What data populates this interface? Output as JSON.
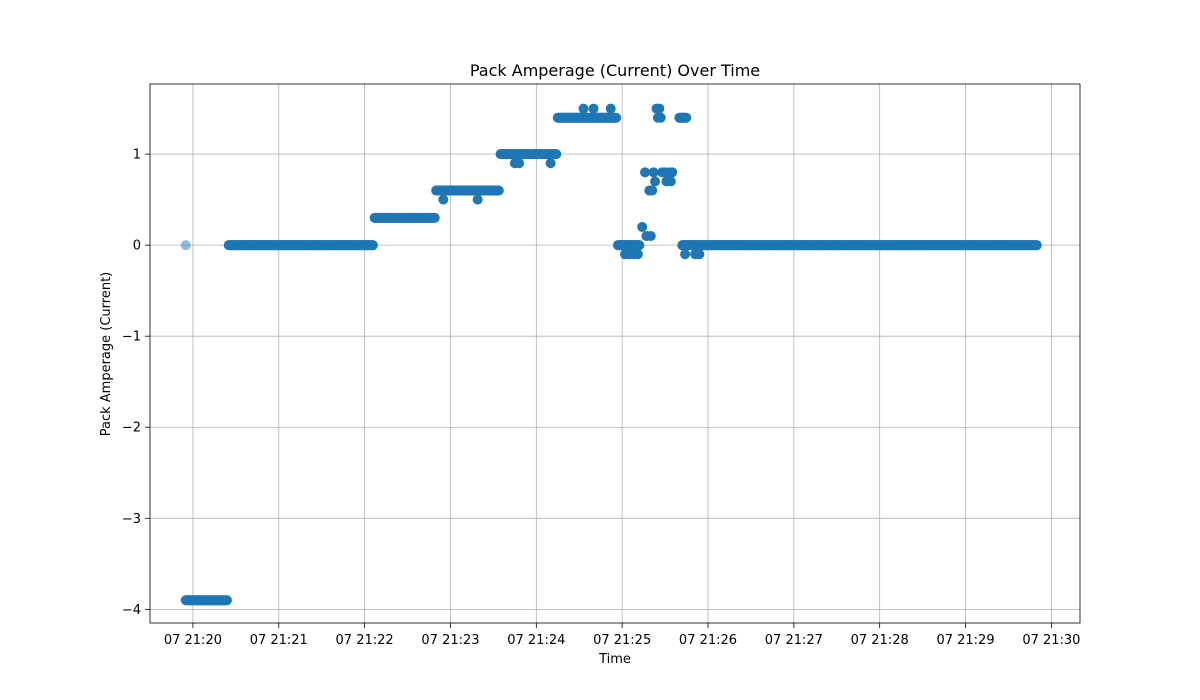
{
  "chart_data": {
    "type": "scatter",
    "title": "Pack Amperage (Current) Over Time",
    "xlabel": "Time",
    "ylabel": "Pack Amperage (Current)",
    "x_unit": "minute",
    "x_ticks": [
      "21:20",
      "21:21",
      "21:22",
      "21:23",
      "21:24",
      "21:25",
      "21:26",
      "21:27",
      "21:28",
      "21:29",
      "21:30"
    ],
    "x_tick_labels": [
      "07 21:20",
      "07 21:21",
      "07 21:22",
      "07 21:23",
      "07 21:24",
      "07 21:25",
      "07 21:26",
      "07 21:27",
      "07 21:28",
      "07 21:29",
      "07 21:30"
    ],
    "y_ticks": [
      -4,
      -3,
      -2,
      -1,
      0,
      1
    ],
    "y_tick_labels": [
      "−4",
      "−3",
      "−2",
      "−1",
      "0",
      "1"
    ],
    "xlim": [
      "21:19:30",
      "21:30:20"
    ],
    "ylim": [
      -4.15,
      1.77
    ],
    "grid": true,
    "color": "#1f77b4",
    "outlier_points": [
      {
        "x": "21:19:55",
        "y": 0
      }
    ],
    "segments": [
      {
        "x_start": "21:19:55",
        "x_end": "21:20:24",
        "y": -3.9
      },
      {
        "x_start": "21:20:25",
        "x_end": "21:22:06",
        "y": 0
      },
      {
        "x_start": "21:22:07",
        "x_end": "21:22:49",
        "y": 0.3
      },
      {
        "x_start": "21:22:50",
        "x_end": "21:23:34",
        "y": 0.6
      },
      {
        "x_start": "21:23:35",
        "x_end": "21:24:14",
        "y": 1.0
      },
      {
        "x_start": "21:24:15",
        "x_end": "21:24:56",
        "y": 1.4
      },
      {
        "x_start": "21:24:57",
        "x_end": "21:25:12",
        "y": 0
      },
      {
        "x_start": "21:25:40",
        "x_end": "21:25:45",
        "y": 1.4
      },
      {
        "x_start": "21:25:42",
        "x_end": "21:29:50",
        "y": 0
      }
    ],
    "points": [
      {
        "x": "21:22:55",
        "y": 0.5
      },
      {
        "x": "21:23:19",
        "y": 0.5
      },
      {
        "x": "21:23:45",
        "y": 0.9
      },
      {
        "x": "21:23:48",
        "y": 0.9
      },
      {
        "x": "21:24:10",
        "y": 0.9
      },
      {
        "x": "21:24:33",
        "y": 1.5
      },
      {
        "x": "21:24:40",
        "y": 1.5
      },
      {
        "x": "21:24:52",
        "y": 1.5
      },
      {
        "x": "21:25:02",
        "y": -0.1
      },
      {
        "x": "21:25:05",
        "y": -0.1
      },
      {
        "x": "21:25:08",
        "y": -0.1
      },
      {
        "x": "21:25:11",
        "y": -0.1
      },
      {
        "x": "21:25:14",
        "y": 0.2
      },
      {
        "x": "21:25:16",
        "y": 0.8
      },
      {
        "x": "21:25:17",
        "y": 0.1
      },
      {
        "x": "21:25:19",
        "y": 0.6
      },
      {
        "x": "21:25:20",
        "y": 0.1
      },
      {
        "x": "21:25:21",
        "y": 0.6
      },
      {
        "x": "21:25:22",
        "y": 0.8
      },
      {
        "x": "21:25:23",
        "y": 0.7
      },
      {
        "x": "21:25:24",
        "y": 1.5
      },
      {
        "x": "21:25:25",
        "y": 1.4
      },
      {
        "x": "21:25:26",
        "y": 1.5
      },
      {
        "x": "21:25:27",
        "y": 1.4
      },
      {
        "x": "21:25:28",
        "y": 0.8
      },
      {
        "x": "21:25:30",
        "y": 0.8
      },
      {
        "x": "21:25:31",
        "y": 0.7
      },
      {
        "x": "21:25:33",
        "y": 0.8
      },
      {
        "x": "21:25:34",
        "y": 0.7
      },
      {
        "x": "21:25:35",
        "y": 0.8
      },
      {
        "x": "21:25:44",
        "y": -0.1
      },
      {
        "x": "21:25:51",
        "y": -0.1
      },
      {
        "x": "21:25:54",
        "y": -0.1
      }
    ]
  }
}
